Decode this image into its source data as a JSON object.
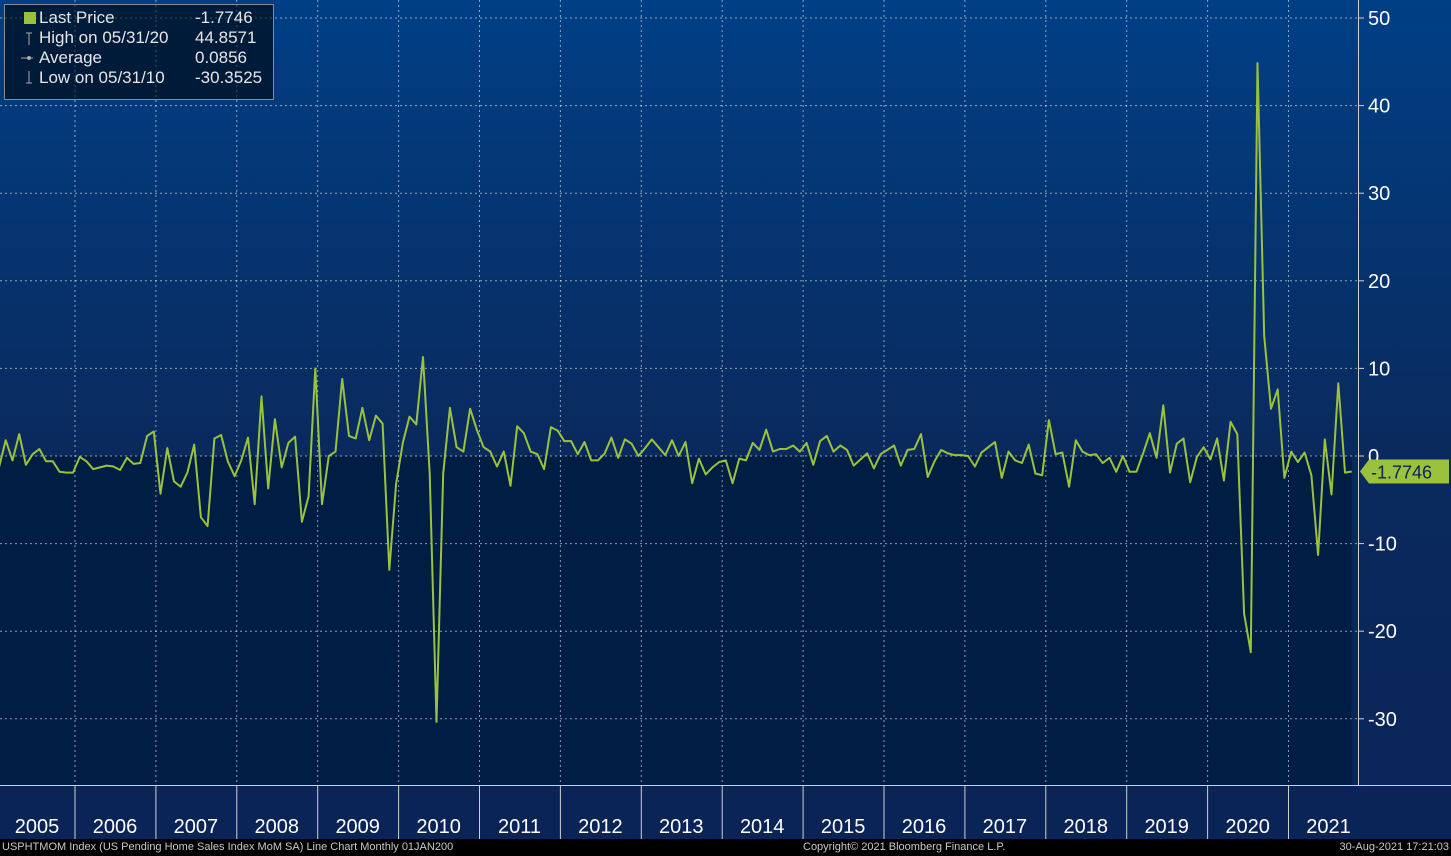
{
  "legend": {
    "last_label": "Last Price",
    "last_value": "-1.7746",
    "high_label": "High on 05/31/20",
    "high_value": "44.8571",
    "avg_label": "Average",
    "avg_value": "0.0856",
    "low_label": "Low on 05/31/10",
    "low_value": "-30.3525",
    "line_color": "#9ac23c"
  },
  "footer": {
    "left": "USPHTMOM Index (US Pending Home Sales Index MoM SA) Line Chart  Monthly 01JAN200",
    "center": "Copyright© 2021 Bloomberg Finance L.P.",
    "right": "30-Aug-2021 17:21:03"
  },
  "chart_data": {
    "type": "line",
    "title": "",
    "xlabel": "",
    "ylabel": "",
    "x_start": "2005-01",
    "x_end": "2021-07",
    "ylim": [
      -37,
      52
    ],
    "yticks": [
      50,
      40,
      30,
      20,
      10,
      0,
      -10,
      -20,
      -30
    ],
    "year_labels": [
      "2005",
      "2006",
      "2007",
      "2008",
      "2009",
      "2010",
      "2011",
      "2012",
      "2013",
      "2014",
      "2015",
      "2016",
      "2017",
      "2018",
      "2019",
      "2020",
      "2021"
    ],
    "grid": true,
    "last_value_label": "-1.7746",
    "series": [
      {
        "values": [
          -1.3,
          1.8,
          -0.5,
          2.5,
          -1.0,
          0.2,
          0.8,
          -0.6,
          -0.6,
          -1.8,
          -1.9,
          -1.9,
          -0.1,
          -0.6,
          -1.5,
          -1.3,
          -1.1,
          -1.2,
          -1.6,
          -0.2,
          -0.9,
          -0.8,
          2.3,
          2.8,
          -4.3,
          0.9,
          -2.9,
          -3.5,
          -1.9,
          1.3,
          -7.0,
          -8.0,
          2.0,
          2.4,
          -0.6,
          -2.3,
          -0.5,
          2.1,
          -5.5,
          6.8,
          -3.7,
          4.2,
          -1.3,
          1.5,
          2.2,
          -7.5,
          -4.6,
          10.0,
          -5.5,
          0.0,
          0.5,
          8.8,
          2.3,
          2.0,
          5.5,
          1.8,
          4.6,
          3.7,
          -13.0,
          -3.2,
          1.5,
          4.5,
          3.6,
          11.3,
          -2.0,
          -30.3525,
          -2.0,
          5.5,
          1.0,
          0.5,
          5.4,
          3.0,
          1.0,
          0.5,
          -1.2,
          0.5,
          -3.4,
          3.4,
          2.6,
          0.5,
          0.2,
          -1.5,
          3.3,
          2.9,
          1.7,
          1.7,
          0.2,
          1.6,
          -0.5,
          -0.5,
          0.3,
          2.1,
          -0.2,
          1.9,
          1.4,
          0.0,
          0.9,
          1.9,
          1.0,
          0.1,
          1.8,
          0.0,
          1.6,
          -3.1,
          -0.3,
          -2.1,
          -1.3,
          -0.7,
          -0.5,
          -3.1,
          -0.3,
          -0.5,
          1.5,
          0.7,
          3.0,
          0.5,
          0.8,
          0.8,
          1.2,
          0.5,
          1.5,
          -1.0,
          1.7,
          2.3,
          0.5,
          1.2,
          0.7,
          -1.1,
          -0.4,
          0.3,
          -1.4,
          0.2,
          0.7,
          1.2,
          -1.1,
          0.7,
          0.8,
          2.5,
          -2.4,
          -0.6,
          0.7,
          0.3,
          0.1,
          0.1,
          0.0,
          -1.2,
          0.4,
          1.0,
          1.6,
          -2.5,
          0.5,
          -0.5,
          -0.8,
          1.3,
          -2.0,
          -2.2,
          4.1,
          0.2,
          0.4,
          -3.5,
          1.8,
          0.5,
          0.1,
          0.2,
          -0.8,
          -0.2,
          -1.8,
          0.0,
          -1.8,
          -1.8,
          0.3,
          2.6,
          -0.2,
          5.8,
          -1.9,
          1.4,
          2.0,
          -3.0,
          -0.1,
          1.0,
          -0.4,
          2.0,
          -2.8,
          3.9,
          2.5,
          -18.0,
          -22.4,
          44.8571,
          13.7,
          5.4,
          7.6,
          -2.5,
          0.5,
          -0.7,
          0.4,
          -2.2,
          -11.3,
          1.9,
          -4.4,
          8.3,
          -1.9,
          -1.7746
        ]
      }
    ]
  }
}
